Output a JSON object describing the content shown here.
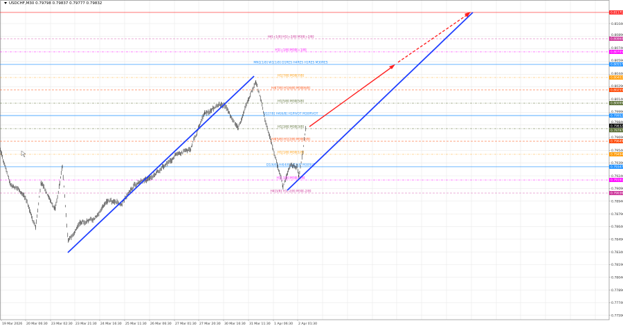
{
  "header": {
    "symbol": "USDCHF,M30",
    "ohlc": "0.79798 0.79837 0.79777 0.79832"
  },
  "chart_data": {
    "type": "candlestick",
    "symbol": "USDCHF",
    "timeframe": "M30",
    "ylim": [
      0.7752,
      0.8125
    ],
    "y_ticks": [
      "0.81040",
      "0.80890",
      "0.80740",
      "0.80590",
      "0.80440",
      "0.80290",
      "0.80140",
      "0.79990",
      "0.79840",
      "0.79690",
      "0.79540",
      "0.79390",
      "0.79240",
      "0.79090",
      "0.78940",
      "0.78790",
      "0.78640",
      "0.78490",
      "0.78340",
      "0.78190",
      "0.78040",
      "0.77890",
      "0.77740",
      "0.77590"
    ],
    "x_ticks": [
      "19 Mar 2026",
      "20 Mar 06:30",
      "23 Mar 02:30",
      "23 Mar 21:30",
      "24 Mar 16:30",
      "25 Mar 11:30",
      "26 Mar 06:30",
      "27 Mar 01:30",
      "27 Mar 20:30",
      "30 Mar 16:30",
      "31 Mar 11:30",
      "1 Apr 06:30",
      "2 Apr 01:30"
    ],
    "grid": true,
    "price_path": [
      {
        "t": "2026-03-19T09:30",
        "p": 0.79559
      },
      {
        "t": "2026-03-19T18:00",
        "p": 0.7915
      },
      {
        "t": "2026-03-20T05:00",
        "p": 0.79028
      },
      {
        "t": "2026-03-20T14:30",
        "p": 0.78619
      },
      {
        "t": "2026-03-20T19:00",
        "p": 0.7915
      },
      {
        "t": "2026-03-23T06:00",
        "p": 0.78864
      },
      {
        "t": "2026-03-23T11:30",
        "p": 0.79355
      },
      {
        "t": "2026-03-23T16:00",
        "p": 0.78455
      },
      {
        "t": "2026-03-24T01:00",
        "p": 0.787
      },
      {
        "t": "2026-03-24T11:00",
        "p": 0.787
      },
      {
        "t": "2026-03-24T22:00",
        "p": 0.78946
      },
      {
        "t": "2026-03-25T09:00",
        "p": 0.78905
      },
      {
        "t": "2026-03-25T19:30",
        "p": 0.7915
      },
      {
        "t": "2026-03-26T06:30",
        "p": 0.79208
      },
      {
        "t": "2026-03-26T17:00",
        "p": 0.79355
      },
      {
        "t": "2026-03-27T03:00",
        "p": 0.79478
      },
      {
        "t": "2026-03-27T14:30",
        "p": 0.7956
      },
      {
        "t": "2026-03-30T01:00",
        "p": 0.79968
      },
      {
        "t": "2026-03-30T16:30",
        "p": 0.80091
      },
      {
        "t": "2026-03-31T03:30",
        "p": 0.79805
      },
      {
        "t": "2026-03-31T17:30",
        "p": 0.80377
      },
      {
        "t": "2026-04-01T02:30",
        "p": 0.79805
      },
      {
        "t": "2026-04-01T15:00",
        "p": 0.7911
      },
      {
        "t": "2026-04-01T20:30",
        "p": 0.79355
      },
      {
        "t": "2026-04-02T02:00",
        "p": 0.79355
      },
      {
        "t": "2026-04-02T03:30",
        "p": 0.79232
      },
      {
        "t": "2026-04-02T09:30",
        "p": 0.79832
      }
    ],
    "current_price": {
      "value": "0.79832",
      "color": "#000000"
    },
    "levels": [
      {
        "price": 0.81171,
        "tag": "0.81171",
        "label": "",
        "color": "#ff2a2a",
        "style": "solid"
      },
      {
        "price": 0.8086,
        "tag": "0.80860",
        "label": "H4[+1/8] H1[+2/8] M30[+2/8]",
        "color": "#cc3399",
        "style": "dash"
      },
      {
        "price": 0.80705,
        "tag": "0.80705",
        "label": "H1[+1/8] M30[+1/8]",
        "color": "#ff00ff",
        "style": "dashdot"
      },
      {
        "price": 0.80557,
        "tag": "0.80557",
        "label": "MN1[1/8] W1[1/8] D1RES H4RES H1RES M30RES",
        "color": "#1e90ff",
        "style": "solid"
      },
      {
        "price": 0.80402,
        "tag": "0.80402",
        "label": "H1[7/8] M30[7/8]",
        "color": "#ff9900",
        "style": "dashdot"
      },
      {
        "price": 0.80255,
        "tag": "0.80255",
        "label": "H4[7/8] H1[6/8] M30[6/8]",
        "color": "#ff4500",
        "style": "dash"
      },
      {
        "price": 0.80099,
        "tag": "0.80099",
        "label": "H1[5/8] M30[5/8]",
        "color": "#556b2f",
        "style": "dashdot"
      },
      {
        "price": 0.79952,
        "tag": "0.79952",
        "label": "D1[7/8] H4[6/8] H1PIVOT M30PIVOT",
        "color": "#1e90ff",
        "style": "solid"
      },
      {
        "price": 0.79797,
        "tag": "0.79797",
        "label": "H1[3/8] M30[3/8]",
        "color": "#556b2f",
        "style": "dashdot"
      },
      {
        "price": 0.79649,
        "tag": "0.79649",
        "label": "H4[5/8] H1[2/8] M30[2/8]",
        "color": "#ff4500",
        "style": "dash"
      },
      {
        "price": 0.79494,
        "tag": "0.79494",
        "label": "H1[1/8] M30[1/8]",
        "color": "#ff9900",
        "style": "dashdot"
      },
      {
        "price": 0.79347,
        "tag": "0.79347",
        "label": "D1[6/8] H4[4/8] H1SUP M30SUP",
        "color": "#1e90ff",
        "style": "solid"
      },
      {
        "price": 0.79191,
        "tag": "0.79191",
        "label": "H1[-1/8] M30[-1/8]",
        "color": "#ff00ff",
        "style": "dashdot"
      },
      {
        "price": 0.79036,
        "tag": "0.79036",
        "label": "H4[3/8] H1[-2/8] M30[-2/8]",
        "color": "#cc3399",
        "style": "dash"
      }
    ],
    "trendline_colors": {
      "channel": "#1f3fff",
      "forecast": "#ff2020"
    }
  }
}
